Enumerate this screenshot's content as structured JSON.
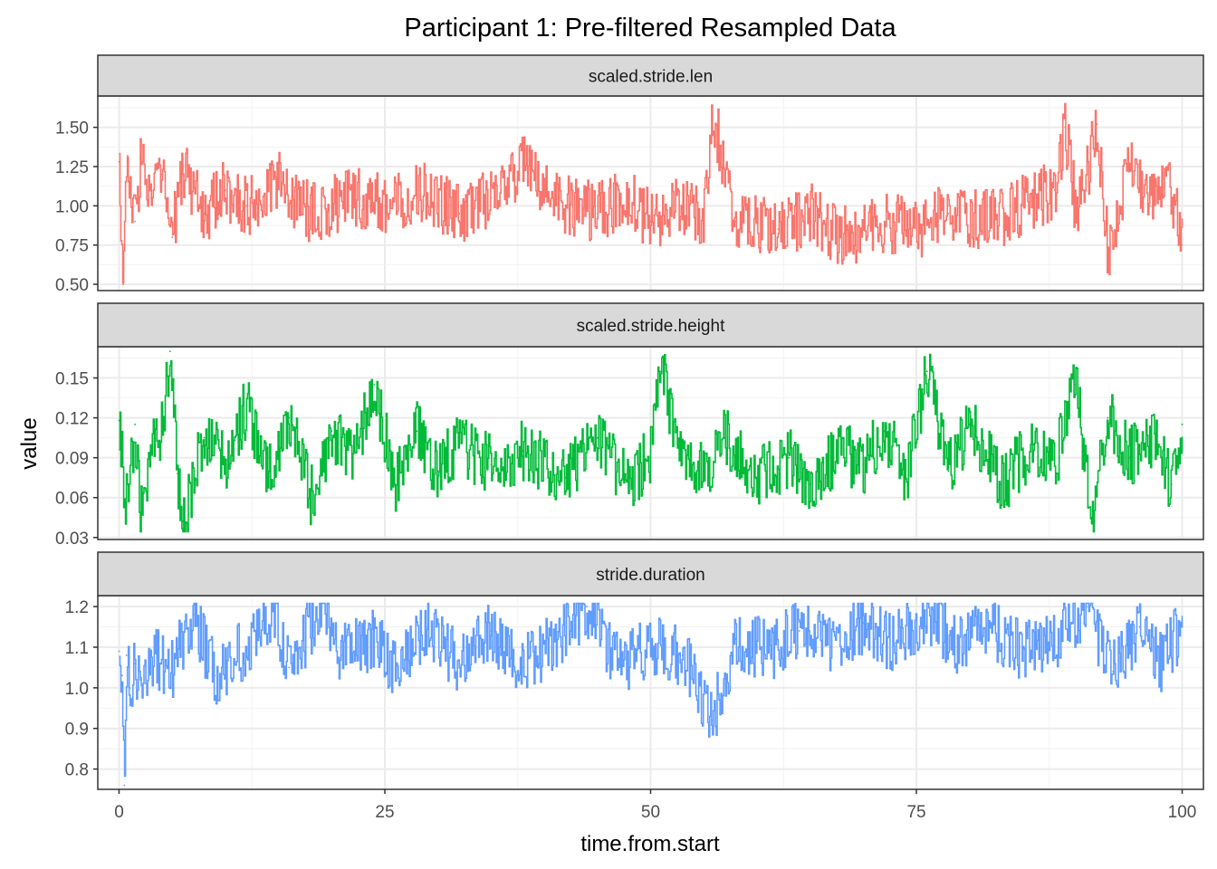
{
  "chart_data": {
    "type": "line",
    "title": "Participant 1: Pre-filtered Resampled Data",
    "xlabel": "time.from.start",
    "ylabel": "value",
    "xlim": [
      -2,
      102
    ],
    "x_ticks": [
      0,
      25,
      50,
      75,
      100
    ],
    "x_tick_labels": [
      "0",
      "25",
      "50",
      "75",
      "100"
    ],
    "grid": true,
    "theme": "bw",
    "panels": [
      {
        "strip": "scaled.stride.len",
        "color": "#F8766D",
        "ylim": [
          0.46,
          1.7
        ],
        "y_ticks": [
          0.5,
          0.75,
          1.0,
          1.25,
          1.5
        ],
        "y_tick_labels": [
          "0.50",
          "0.75",
          "1.00",
          "1.25",
          "1.50"
        ],
        "x": [
          0,
          0.2,
          0.4,
          0.6,
          0.8,
          1.0,
          1.5,
          2,
          3,
          4,
          5,
          6,
          8,
          10,
          12,
          15,
          18,
          22,
          25,
          28,
          32,
          35,
          38,
          42,
          45,
          48,
          50,
          52,
          55,
          55.8,
          58,
          62,
          65,
          68,
          72,
          75,
          78,
          82,
          85,
          88,
          89,
          90,
          91,
          92,
          93,
          95,
          97,
          98.5,
          100
        ],
        "values": [
          1.28,
          0.78,
          0.5,
          1.1,
          1.32,
          1.05,
          0.9,
          1.3,
          1.05,
          1.2,
          0.8,
          1.25,
          0.95,
          1.1,
          1.0,
          1.15,
          0.95,
          1.05,
          1.0,
          1.1,
          0.95,
          1.05,
          1.25,
          1.0,
          0.95,
          1.05,
          0.9,
          1.0,
          0.95,
          1.62,
          0.9,
          0.85,
          0.95,
          0.8,
          0.9,
          0.85,
          0.95,
          0.9,
          1.0,
          1.1,
          1.5,
          0.95,
          1.2,
          1.52,
          0.7,
          1.25,
          1.0,
          1.25,
          0.75
        ]
      },
      {
        "strip": "scaled.stride.height",
        "color": "#00BA38",
        "ylim": [
          0.0285,
          0.1735
        ],
        "y_ticks": [
          0.03,
          0.06,
          0.09,
          0.12,
          0.15
        ],
        "y_tick_labels": [
          "0.03",
          "0.06",
          "0.09",
          "0.12",
          "0.15"
        ],
        "x": [
          0,
          0.5,
          1,
          1.5,
          2,
          3,
          4,
          4.8,
          5.5,
          6,
          8,
          10,
          12,
          14,
          16,
          18,
          20,
          22,
          24,
          26,
          28,
          30,
          32,
          35,
          38,
          42,
          45,
          48,
          50,
          51,
          53,
          55,
          57,
          60,
          63,
          65,
          68,
          70,
          72,
          74,
          76,
          78,
          80,
          83,
          86,
          88,
          90,
          91.5,
          93,
          95,
          97,
          99,
          100
        ],
        "values": [
          0.118,
          0.058,
          0.08,
          0.115,
          0.045,
          0.095,
          0.11,
          0.17,
          0.078,
          0.042,
          0.105,
          0.085,
          0.13,
          0.075,
          0.12,
          0.06,
          0.11,
          0.085,
          0.145,
          0.07,
          0.11,
          0.08,
          0.1,
          0.085,
          0.095,
          0.075,
          0.105,
          0.07,
          0.095,
          0.155,
          0.085,
          0.08,
          0.105,
          0.075,
          0.09,
          0.07,
          0.095,
          0.085,
          0.11,
          0.075,
          0.155,
          0.08,
          0.115,
          0.07,
          0.1,
          0.085,
          0.145,
          0.045,
          0.12,
          0.09,
          0.105,
          0.07,
          0.115
        ]
      },
      {
        "strip": "stride.duration",
        "color": "#619CFF",
        "ylim": [
          0.75,
          1.227
        ],
        "y_ticks": [
          0.8,
          0.9,
          1.0,
          1.1,
          1.2
        ],
        "y_tick_labels": [
          "0.8",
          "0.9",
          "1.0",
          "1.1",
          "1.2"
        ],
        "x": [
          0,
          0.3,
          0.5,
          0.7,
          1,
          1.5,
          2,
          3,
          5,
          7,
          9,
          12,
          14.5,
          16,
          19,
          21,
          24,
          26,
          29,
          32,
          35,
          38,
          41,
          44,
          47,
          50,
          53,
          55.8,
          58,
          61,
          64,
          67,
          70,
          73,
          76,
          79,
          82,
          85,
          88,
          91,
          93.5,
          96,
          98,
          100
        ],
        "values": [
          1.09,
          1.03,
          0.76,
          1.08,
          1.0,
          1.06,
          1.02,
          1.08,
          1.05,
          1.18,
          1.03,
          1.1,
          1.2,
          1.05,
          1.2,
          1.08,
          1.12,
          1.04,
          1.15,
          1.06,
          1.14,
          1.05,
          1.12,
          1.2,
          1.06,
          1.1,
          1.08,
          0.92,
          1.12,
          1.09,
          1.14,
          1.1,
          1.16,
          1.11,
          1.19,
          1.1,
          1.15,
          1.09,
          1.12,
          1.2,
          1.04,
          1.15,
          1.06,
          1.15
        ]
      }
    ]
  }
}
